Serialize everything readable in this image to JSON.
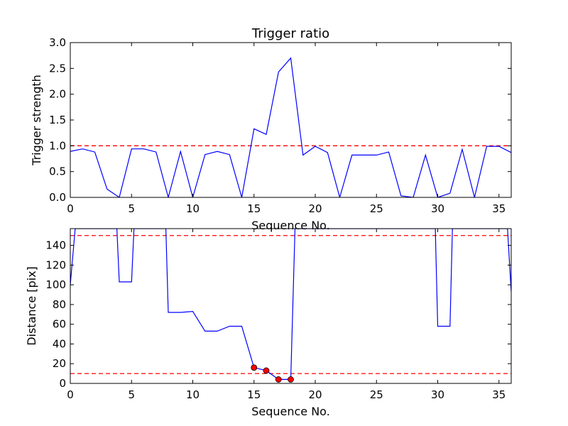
{
  "chart_data": [
    {
      "type": "line",
      "title": "Trigger ratio",
      "xlabel": "Sequence No.",
      "ylabel": "Trigger strength",
      "xlim": [
        0,
        36
      ],
      "ylim": [
        0,
        3
      ],
      "xticks": [
        0,
        5,
        10,
        15,
        20,
        25,
        30,
        35
      ],
      "yticks": [
        0,
        0.5,
        1,
        1.5,
        2,
        2.5,
        3
      ],
      "xtick_labels": [
        "0",
        "5",
        "10",
        "15",
        "20",
        "25",
        "30",
        "35"
      ],
      "ytick_labels": [
        "0.0",
        "0.5",
        "1.0",
        "1.5",
        "2.0",
        "2.5",
        "3.0"
      ],
      "threshold_lines": [
        1.0
      ],
      "line_color": "#0000ff",
      "threshold_color": "#ff0000",
      "x": [
        0,
        1,
        2,
        3,
        4,
        5,
        6,
        7,
        8,
        9,
        10,
        11,
        12,
        13,
        14,
        15,
        16,
        17,
        18,
        19,
        20,
        21,
        22,
        23,
        24,
        25,
        26,
        27,
        28,
        29,
        30,
        31,
        32,
        33,
        34,
        35,
        36
      ],
      "y": [
        0.89,
        0.94,
        0.88,
        0.16,
        0.0,
        0.94,
        0.94,
        0.88,
        0.0,
        0.89,
        0.0,
        0.83,
        0.89,
        0.83,
        0.0,
        1.33,
        1.22,
        2.43,
        2.7,
        0.82,
        0.99,
        0.87,
        0.0,
        0.82,
        0.82,
        0.82,
        0.88,
        0.03,
        0.0,
        0.82,
        0.0,
        0.08,
        0.93,
        0.0,
        0.99,
        0.99,
        0.87
      ]
    },
    {
      "type": "line",
      "title": "",
      "xlabel": "Sequence No.",
      "ylabel": "Distance [pix]",
      "xlim": [
        0,
        36
      ],
      "ylim": [
        0,
        157
      ],
      "xticks": [
        0,
        5,
        10,
        15,
        20,
        25,
        30,
        35
      ],
      "yticks": [
        0,
        20,
        40,
        60,
        80,
        100,
        120,
        140
      ],
      "xtick_labels": [
        "0",
        "5",
        "10",
        "15",
        "20",
        "25",
        "30",
        "35"
      ],
      "ytick_labels": [
        "0",
        "20",
        "40",
        "60",
        "80",
        "100",
        "120",
        "140"
      ],
      "threshold_lines": [
        150,
        10
      ],
      "line_color": "#0000ff",
      "threshold_color": "#ff0000",
      "marker_color": "#ff0000",
      "x": [
        0,
        0.4,
        3.8,
        4,
        5,
        5.2,
        7.8,
        8,
        9,
        10,
        11,
        12,
        13,
        14,
        15,
        16,
        17,
        18,
        18.35,
        29.8,
        30,
        31,
        31.2,
        35.7,
        36
      ],
      "y": [
        100,
        157,
        157,
        103,
        103,
        157,
        157,
        72,
        72,
        73,
        53,
        53,
        58,
        58,
        16,
        13,
        4,
        4,
        157,
        157,
        58,
        58,
        157,
        157,
        93
      ],
      "markers": {
        "x": [
          15,
          16,
          17,
          18
        ],
        "y": [
          16,
          13,
          4,
          4
        ]
      }
    }
  ]
}
